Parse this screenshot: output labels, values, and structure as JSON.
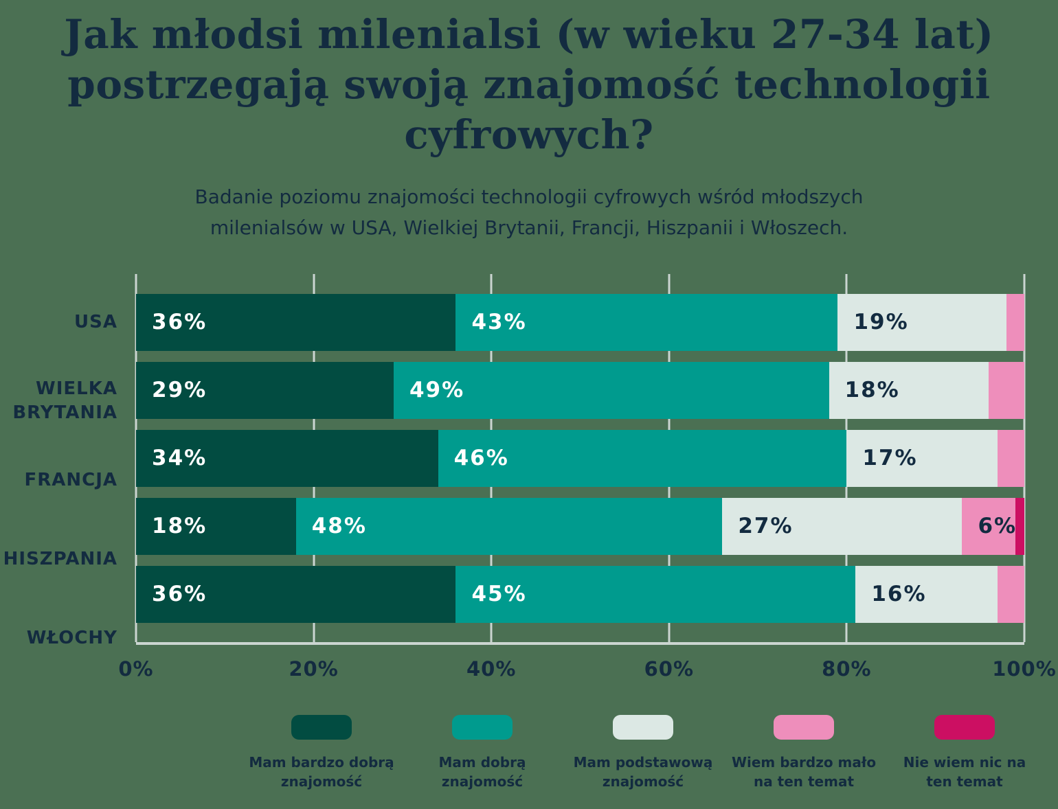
{
  "title_lines": [
    "Jak młodsi milenialsi (w wieku 27-34 lat)",
    "postrzegają swoją znajomość technologii",
    "cyfrowych?"
  ],
  "subtitle_lines": [
    "Badanie poziomu znajomości technologii cyfrowych wśród młodszych",
    "milenialsów w USA, Wielkiej Brytanii, Francji, Hiszpanii i Włoszech."
  ],
  "colors": {
    "background": "#4B7053",
    "text": "#132B40",
    "gridline": "#CBD5D1",
    "label_on_dark": "#FFFFFF",
    "label_on_light": "#132B40"
  },
  "chart_data": {
    "type": "bar",
    "orientation": "horizontal",
    "stacked": true,
    "grid": true,
    "legend_position": "bottom",
    "xlim": [
      0,
      100
    ],
    "value_suffix": "%",
    "label_min_value": 6,
    "categories": [
      "USA",
      "WIELKA BRYTANIA",
      "FRANCJA",
      "HISZPANIA",
      "WŁOCHY"
    ],
    "x_ticks": [
      "0%",
      "20%",
      "40%",
      "60%",
      "80%",
      "100%"
    ],
    "x_tick_values": [
      0,
      20,
      40,
      60,
      80,
      100
    ],
    "series": [
      {
        "name": "Mam bardzo dobrą znajomość",
        "color": "#024C41",
        "label_color": "#FFFFFF",
        "values": [
          36,
          29,
          34,
          18,
          36
        ]
      },
      {
        "name": "Mam dobrą znajomość",
        "color": "#009B8E",
        "label_color": "#FFFFFF",
        "values": [
          43,
          49,
          46,
          48,
          45
        ]
      },
      {
        "name": "Mam podstawową znajomość",
        "color": "#DCE8E4",
        "label_color": "#132B40",
        "values": [
          19,
          18,
          17,
          27,
          16
        ]
      },
      {
        "name": "Wiem bardzo mało na ten temat",
        "color": "#EE8EBB",
        "label_color": "#132B40",
        "values": [
          2,
          4,
          3,
          6,
          3
        ]
      },
      {
        "name": "Nie wiem nic na ten temat",
        "color": "#CC0F62",
        "label_color": "#FFFFFF",
        "values": [
          0,
          0,
          0,
          1,
          0
        ]
      }
    ]
  }
}
